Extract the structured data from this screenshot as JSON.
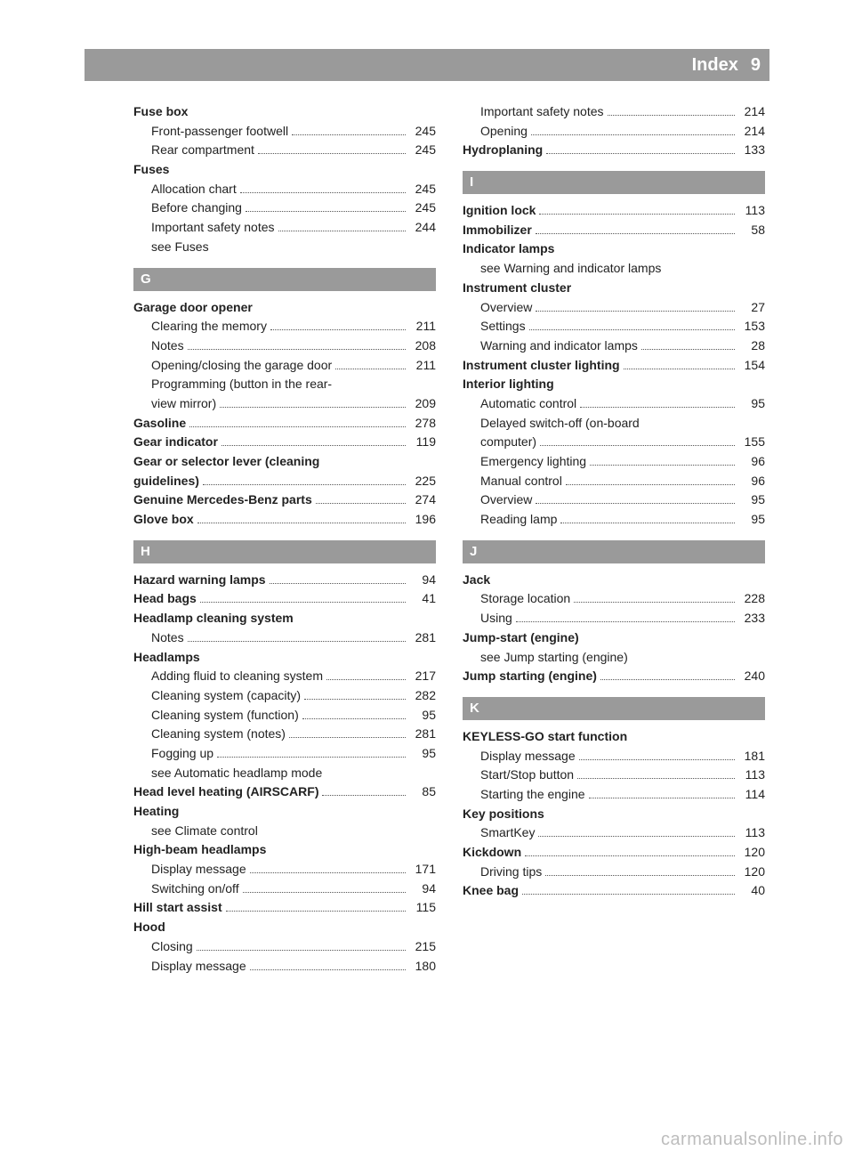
{
  "header": {
    "title": "Index",
    "page_number": "9"
  },
  "watermark": "carmanualsonline.info",
  "colors": {
    "band": "#9a9a9a",
    "text": "#222222",
    "watermark": "#bdbdbd",
    "white": "#ffffff"
  },
  "left_column": [
    {
      "type": "heading",
      "text": "Fuse box"
    },
    {
      "type": "sub",
      "text": "Front-passenger footwell",
      "page": "245"
    },
    {
      "type": "sub",
      "text": "Rear compartment",
      "page": "245"
    },
    {
      "type": "heading",
      "text": "Fuses"
    },
    {
      "type": "sub",
      "text": "Allocation chart",
      "page": "245"
    },
    {
      "type": "sub",
      "text": "Before changing",
      "page": "245"
    },
    {
      "type": "sub",
      "text": "Important safety notes",
      "page": "244"
    },
    {
      "type": "subplain",
      "text": "see Fuses"
    },
    {
      "type": "letter",
      "text": "G"
    },
    {
      "type": "heading",
      "text": "Garage door opener"
    },
    {
      "type": "sub",
      "text": "Clearing the memory",
      "page": "211"
    },
    {
      "type": "sub",
      "text": "Notes",
      "page": "208"
    },
    {
      "type": "sub",
      "text": "Opening/closing the garage door",
      "page": "211",
      "tight": true
    },
    {
      "type": "subplain",
      "text": "Programming (button in the rear-"
    },
    {
      "type": "sub",
      "text": "view mirror)",
      "page": "209"
    },
    {
      "type": "bold",
      "text": "Gasoline",
      "page": "278"
    },
    {
      "type": "bold",
      "text": "Gear indicator",
      "page": "119"
    },
    {
      "type": "headingplain",
      "text": "Gear or selector lever (cleaning"
    },
    {
      "type": "bold",
      "text": "guidelines)",
      "page": "225"
    },
    {
      "type": "bold",
      "text": "Genuine Mercedes-Benz parts",
      "page": "274"
    },
    {
      "type": "bold",
      "text": "Glove box",
      "page": "196"
    },
    {
      "type": "letter",
      "text": "H"
    },
    {
      "type": "bold",
      "text": "Hazard warning lamps",
      "page": "94"
    },
    {
      "type": "bold",
      "text": "Head bags",
      "page": "41"
    },
    {
      "type": "heading",
      "text": "Headlamp cleaning system"
    },
    {
      "type": "sub",
      "text": "Notes",
      "page": "281"
    },
    {
      "type": "heading",
      "text": "Headlamps"
    },
    {
      "type": "sub",
      "text": "Adding fluid to cleaning system",
      "page": "217"
    },
    {
      "type": "sub",
      "text": "Cleaning system (capacity)",
      "page": "282"
    },
    {
      "type": "sub",
      "text": "Cleaning system (function)",
      "page": "95"
    },
    {
      "type": "sub",
      "text": "Cleaning system (notes)",
      "page": "281"
    },
    {
      "type": "sub",
      "text": "Fogging up",
      "page": "95"
    },
    {
      "type": "subplain",
      "text": "see Automatic headlamp mode"
    },
    {
      "type": "bold",
      "text": "Head level heating (AIRSCARF)",
      "page": "85"
    },
    {
      "type": "heading",
      "text": "Heating"
    },
    {
      "type": "subplain",
      "text": "see Climate control"
    },
    {
      "type": "heading",
      "text": "High-beam headlamps"
    },
    {
      "type": "sub",
      "text": "Display message",
      "page": "171"
    },
    {
      "type": "sub",
      "text": "Switching on/off",
      "page": "94"
    },
    {
      "type": "bold",
      "text": "Hill start assist",
      "page": "115"
    },
    {
      "type": "heading",
      "text": "Hood"
    },
    {
      "type": "sub",
      "text": "Closing",
      "page": "215"
    },
    {
      "type": "sub",
      "text": "Display message",
      "page": "180"
    }
  ],
  "right_column": [
    {
      "type": "sub",
      "text": "Important safety notes",
      "page": "214"
    },
    {
      "type": "sub",
      "text": "Opening",
      "page": "214"
    },
    {
      "type": "bold",
      "text": "Hydroplaning",
      "page": "133"
    },
    {
      "type": "letter",
      "text": "I"
    },
    {
      "type": "bold",
      "text": "Ignition lock",
      "page": "113"
    },
    {
      "type": "bold",
      "text": "Immobilizer",
      "page": "58"
    },
    {
      "type": "heading",
      "text": "Indicator lamps"
    },
    {
      "type": "subplain",
      "text": "see Warning and indicator lamps"
    },
    {
      "type": "heading",
      "text": "Instrument cluster"
    },
    {
      "type": "sub",
      "text": "Overview",
      "page": "27"
    },
    {
      "type": "sub",
      "text": "Settings",
      "page": "153"
    },
    {
      "type": "sub",
      "text": "Warning and indicator lamps",
      "page": "28"
    },
    {
      "type": "bold",
      "text": "Instrument cluster lighting",
      "page": "154"
    },
    {
      "type": "heading",
      "text": "Interior lighting"
    },
    {
      "type": "sub",
      "text": "Automatic control",
      "page": "95"
    },
    {
      "type": "subplain",
      "text": "Delayed switch-off (on-board"
    },
    {
      "type": "sub",
      "text": "computer)",
      "page": "155"
    },
    {
      "type": "sub",
      "text": "Emergency lighting",
      "page": "96"
    },
    {
      "type": "sub",
      "text": "Manual control",
      "page": "96"
    },
    {
      "type": "sub",
      "text": "Overview",
      "page": "95"
    },
    {
      "type": "sub",
      "text": "Reading lamp",
      "page": "95"
    },
    {
      "type": "letter",
      "text": "J"
    },
    {
      "type": "heading",
      "text": "Jack"
    },
    {
      "type": "sub",
      "text": "Storage location",
      "page": "228"
    },
    {
      "type": "sub",
      "text": "Using",
      "page": "233"
    },
    {
      "type": "heading",
      "text": "Jump-start (engine)"
    },
    {
      "type": "subplain",
      "text": "see Jump starting (engine)"
    },
    {
      "type": "bold",
      "text": "Jump starting (engine)",
      "page": "240"
    },
    {
      "type": "letter",
      "text": "K"
    },
    {
      "type": "heading",
      "text": "KEYLESS-GO start function"
    },
    {
      "type": "sub",
      "text": "Display message",
      "page": "181"
    },
    {
      "type": "sub",
      "text": "Start/Stop button",
      "page": "113"
    },
    {
      "type": "sub",
      "text": "Starting the engine",
      "page": "114"
    },
    {
      "type": "heading",
      "text": "Key positions"
    },
    {
      "type": "sub",
      "text": "SmartKey",
      "page": "113"
    },
    {
      "type": "bold",
      "text": "Kickdown",
      "page": "120"
    },
    {
      "type": "sub",
      "text": "Driving tips",
      "page": "120"
    },
    {
      "type": "bold",
      "text": "Knee bag",
      "page": "40"
    }
  ]
}
